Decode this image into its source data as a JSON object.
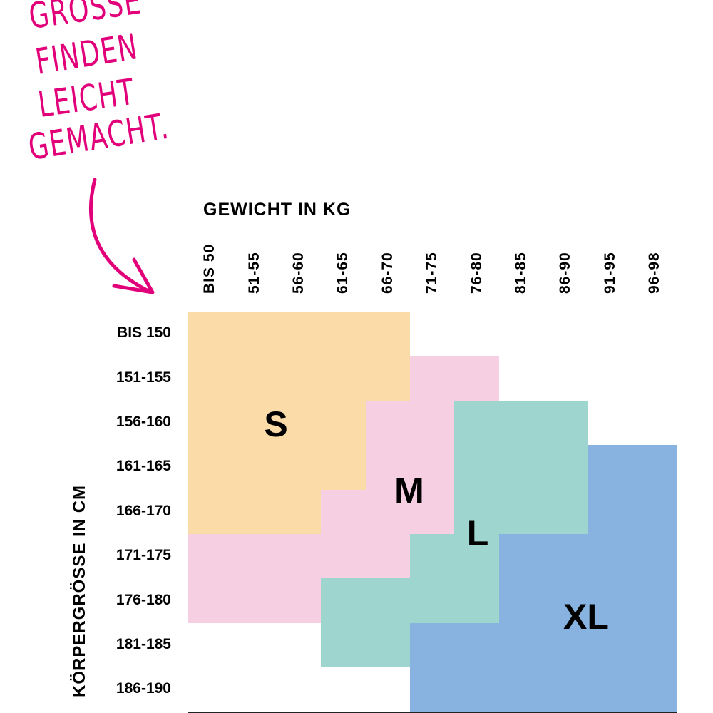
{
  "headline": [
    "GRÖSSE",
    "FINDEN",
    "LEICHT",
    "GEMACHT."
  ],
  "colors": {
    "headline": "#e2007a",
    "S": "#fbdca8",
    "M": "#f6cfe3",
    "L": "#9fd5cf",
    "XL": "#88b3e0",
    "empty": "#ffffff",
    "grid": "#222222"
  },
  "chart_data": {
    "type": "heatmap",
    "xlabel": "GEWICHT IN KG",
    "ylabel": "KÖRPERGRÖSSE IN CM",
    "x_categories": [
      "BIS 50",
      "51-55",
      "56-60",
      "61-65",
      "66-70",
      "71-75",
      "76-80",
      "81-85",
      "86-90",
      "91-95",
      "96-98"
    ],
    "y_categories": [
      "BIS 150",
      "151-155",
      "156-160",
      "161-165",
      "166-170",
      "171-175",
      "176-180",
      "181-185",
      "186-190"
    ],
    "size_labels": [
      "S",
      "M",
      "L",
      "XL"
    ],
    "cells": [
      [
        "S",
        "S",
        "S",
        "S",
        "S",
        "",
        "",
        "",
        "",
        "",
        ""
      ],
      [
        "S",
        "S",
        "S",
        "S",
        "S",
        "M",
        "M",
        "",
        "",
        "",
        ""
      ],
      [
        "S",
        "S",
        "S",
        "S",
        "M",
        "M",
        "L",
        "L",
        "L",
        "",
        ""
      ],
      [
        "S",
        "S",
        "S",
        "S",
        "M",
        "M",
        "L",
        "L",
        "L",
        "XL",
        "XL"
      ],
      [
        "S",
        "S",
        "S",
        "M",
        "M",
        "M",
        "L",
        "L",
        "L",
        "XL",
        "XL"
      ],
      [
        "M",
        "M",
        "M",
        "M",
        "M",
        "L",
        "L",
        "XL",
        "XL",
        "XL",
        "XL"
      ],
      [
        "M",
        "M",
        "M",
        "L",
        "L",
        "L",
        "L",
        "XL",
        "XL",
        "XL",
        "XL"
      ],
      [
        "",
        "",
        "",
        "L",
        "L",
        "XL",
        "XL",
        "XL",
        "XL",
        "XL",
        "XL"
      ],
      [
        "",
        "",
        "",
        "",
        "",
        "XL",
        "XL",
        "XL",
        "XL",
        "XL",
        "XL"
      ]
    ]
  }
}
